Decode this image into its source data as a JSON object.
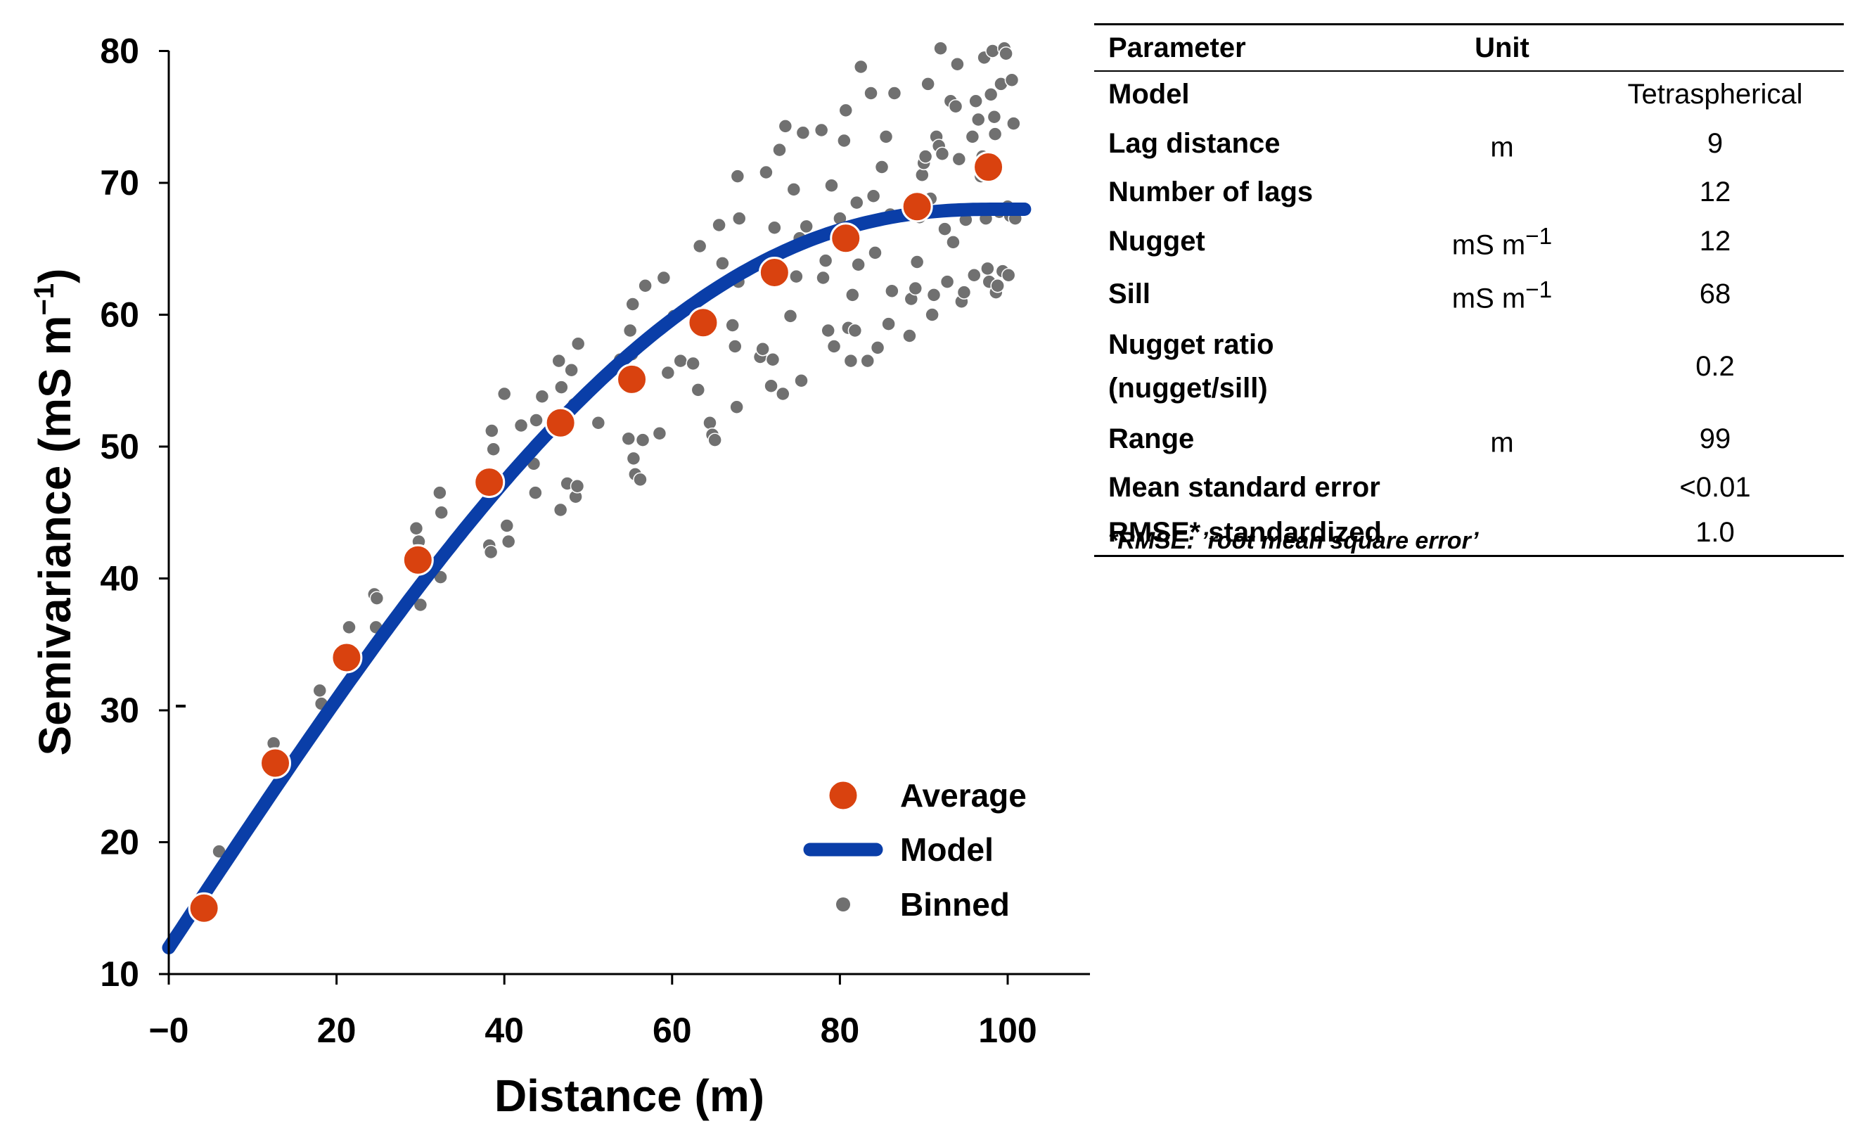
{
  "chart_data": {
    "type": "scatter",
    "xlabel": "Distance (m)",
    "ylabel_main": "Semivariance (mS m",
    "ylabel_sup": "−1",
    "ylabel_close": ")",
    "xlim": [
      0,
      110
    ],
    "ylim": [
      10,
      80
    ],
    "x_ticks": [
      0,
      20,
      40,
      60,
      80,
      100
    ],
    "x_tick_labels": [
      "−0",
      "20",
      "40",
      "60",
      "80",
      "100"
    ],
    "y_ticks": [
      10,
      20,
      30,
      40,
      50,
      60,
      70,
      80
    ],
    "y_tick_labels": [
      "10",
      "20",
      "30",
      "40",
      "50",
      "60",
      "70",
      "80"
    ],
    "colors": {
      "average": "#d9420f",
      "model": "#0a3ea8",
      "binned": "#707070"
    },
    "legend": {
      "position": "bottom-right",
      "entries": [
        {
          "label": "Average",
          "kind": "average"
        },
        {
          "label": "Model",
          "kind": "model"
        },
        {
          "label": "Binned",
          "kind": "binned"
        }
      ]
    },
    "series": [
      {
        "name": "Average",
        "points": [
          [
            4.2,
            15
          ],
          [
            12.7,
            26
          ],
          [
            21.2,
            34
          ],
          [
            29.7,
            41.4
          ],
          [
            38.2,
            47.3
          ],
          [
            46.7,
            51.8
          ],
          [
            55.2,
            55.1
          ],
          [
            63.7,
            59.4
          ],
          [
            72.2,
            63.2
          ],
          [
            80.7,
            65.8
          ],
          [
            89.2,
            68.2
          ],
          [
            97.7,
            71.2
          ]
        ]
      },
      {
        "name": "Model",
        "model": "tetraspherical",
        "nugget": 12,
        "sill": 68,
        "range": 99,
        "x_range": [
          0,
          102
        ]
      },
      {
        "name": "Binned",
        "points": [
          [
            6,
            19.3
          ],
          [
            12.5,
            27.5
          ],
          [
            18,
            31.5
          ],
          [
            18.2,
            30.5
          ],
          [
            20.5,
            34.2
          ],
          [
            21.5,
            36.3
          ],
          [
            24.5,
            38.8
          ],
          [
            24.7,
            36.3
          ],
          [
            24.8,
            38.5
          ],
          [
            29.5,
            43.8
          ],
          [
            29.8,
            42.8
          ],
          [
            30,
            38
          ],
          [
            32.3,
            46.5
          ],
          [
            32.5,
            45
          ],
          [
            32.4,
            40.1
          ],
          [
            36.2,
            44.5
          ],
          [
            38.5,
            51.2
          ],
          [
            38.7,
            49.8
          ],
          [
            38.2,
            42.5
          ],
          [
            38.4,
            42
          ],
          [
            40,
            54
          ],
          [
            40.3,
            44
          ],
          [
            40.5,
            42.8
          ],
          [
            42,
            51.6
          ],
          [
            43.8,
            52
          ],
          [
            43.5,
            48.7
          ],
          [
            43.7,
            46.5
          ],
          [
            44.5,
            53.8
          ],
          [
            46.5,
            56.5
          ],
          [
            46.8,
            54.5
          ],
          [
            46.7,
            45.2
          ],
          [
            47.5,
            47.2
          ],
          [
            48,
            55.8
          ],
          [
            48.3,
            53.2
          ],
          [
            48.5,
            46.2
          ],
          [
            48.7,
            47
          ],
          [
            48.8,
            57.8
          ],
          [
            51.2,
            51.8
          ],
          [
            53.8,
            56.6
          ],
          [
            54.8,
            50.6
          ],
          [
            55,
            58.8
          ],
          [
            55.2,
            57
          ],
          [
            55.3,
            60.8
          ],
          [
            55.4,
            49.1
          ],
          [
            55.6,
            47.9
          ],
          [
            56.2,
            47.5
          ],
          [
            56.5,
            50.5
          ],
          [
            56.8,
            62.2
          ],
          [
            58.5,
            51
          ],
          [
            59,
            62.8
          ],
          [
            59.5,
            55.6
          ],
          [
            60.2,
            59.9
          ],
          [
            61,
            56.5
          ],
          [
            62.5,
            56.3
          ],
          [
            62.8,
            59.8
          ],
          [
            63.1,
            54.3
          ],
          [
            63.3,
            65.2
          ],
          [
            64.5,
            51.8
          ],
          [
            64.8,
            50.9
          ],
          [
            65.1,
            50.5
          ],
          [
            65.6,
            66.8
          ],
          [
            66,
            63.9
          ],
          [
            67.2,
            59.2
          ],
          [
            67.5,
            57.6
          ],
          [
            67.7,
            53
          ],
          [
            67.8,
            70.5
          ],
          [
            67.9,
            62.5
          ],
          [
            68,
            67.3
          ],
          [
            70.5,
            56.8
          ],
          [
            70.8,
            57.4
          ],
          [
            71.2,
            70.8
          ],
          [
            71.8,
            54.6
          ],
          [
            72,
            56.6
          ],
          [
            72.2,
            66.6
          ],
          [
            72.8,
            72.5
          ],
          [
            73.5,
            74.3
          ],
          [
            73.2,
            54
          ],
          [
            74.1,
            59.9
          ],
          [
            74.5,
            69.5
          ],
          [
            74.8,
            62.9
          ],
          [
            75.2,
            65.8
          ],
          [
            75.4,
            55
          ],
          [
            75.6,
            73.8
          ],
          [
            76,
            66.7
          ],
          [
            77.8,
            74
          ],
          [
            78,
            62.8
          ],
          [
            78.3,
            64.1
          ],
          [
            78.6,
            58.8
          ],
          [
            79,
            69.8
          ],
          [
            79.3,
            57.6
          ],
          [
            80,
            67.3
          ],
          [
            80.5,
            73.2
          ],
          [
            80.7,
            75.5
          ],
          [
            81,
            59
          ],
          [
            81.3,
            56.5
          ],
          [
            81.5,
            61.5
          ],
          [
            81.8,
            58.8
          ],
          [
            82,
            68.5
          ],
          [
            82.2,
            63.8
          ],
          [
            82.5,
            78.8
          ],
          [
            83.3,
            56.5
          ],
          [
            83.7,
            76.8
          ],
          [
            84,
            69
          ],
          [
            84.2,
            64.7
          ],
          [
            84.5,
            57.5
          ],
          [
            85,
            71.2
          ],
          [
            85.5,
            73.5
          ],
          [
            85.8,
            59.3
          ],
          [
            86,
            67.6
          ],
          [
            86.2,
            61.8
          ],
          [
            86.5,
            76.8
          ],
          [
            88.3,
            58.4
          ],
          [
            88.5,
            61.2
          ],
          [
            89,
            62
          ],
          [
            89.2,
            64
          ],
          [
            89.5,
            67.4
          ],
          [
            89.8,
            70.6
          ],
          [
            90,
            71.5
          ],
          [
            90.2,
            72
          ],
          [
            90.5,
            77.5
          ],
          [
            90.8,
            68.8
          ],
          [
            91,
            60
          ],
          [
            91.2,
            61.5
          ],
          [
            91.5,
            73.5
          ],
          [
            91.8,
            72.8
          ],
          [
            92,
            80.2
          ],
          [
            92.2,
            72.2
          ],
          [
            92.5,
            66.5
          ],
          [
            92.8,
            62.5
          ],
          [
            93.2,
            76.2
          ],
          [
            93.5,
            65.5
          ],
          [
            93.8,
            75.8
          ],
          [
            94,
            79
          ],
          [
            94.2,
            71.8
          ],
          [
            94.5,
            61
          ],
          [
            94.8,
            61.7
          ],
          [
            95,
            67.2
          ],
          [
            95.8,
            73.5
          ],
          [
            96,
            63
          ],
          [
            96.2,
            76.2
          ],
          [
            96.5,
            74.8
          ],
          [
            96.8,
            70.5
          ],
          [
            97,
            72
          ],
          [
            97.2,
            79.5
          ],
          [
            97.4,
            67.3
          ],
          [
            97.6,
            63.5
          ],
          [
            97.8,
            62.5
          ],
          [
            98,
            76.7
          ],
          [
            98.2,
            80
          ],
          [
            98.4,
            75
          ],
          [
            98.5,
            73.7
          ],
          [
            98.6,
            61.7
          ],
          [
            98.8,
            62.2
          ],
          [
            99,
            67.8
          ],
          [
            99.2,
            77.5
          ],
          [
            99.4,
            63.3
          ],
          [
            99.6,
            80.2
          ],
          [
            99.8,
            79.8
          ],
          [
            100,
            68.2
          ],
          [
            100.1,
            63
          ],
          [
            100.3,
            67.5
          ],
          [
            100.5,
            77.8
          ],
          [
            100.7,
            74.5
          ],
          [
            100.9,
            67.3
          ]
        ]
      }
    ]
  },
  "table": {
    "header": {
      "parameter": "Parameter",
      "unit": "Unit",
      "value": ""
    },
    "rows": [
      {
        "parameter": "Model",
        "unit": "",
        "unit_sup": "",
        "value": "Tetraspherical"
      },
      {
        "parameter": "Lag distance",
        "unit": "m",
        "unit_sup": "",
        "value": "9"
      },
      {
        "parameter": "Number of lags",
        "unit": "",
        "unit_sup": "",
        "value": "12"
      },
      {
        "parameter": "Nugget",
        "unit": "mS m",
        "unit_sup": "−1",
        "value": "12"
      },
      {
        "parameter": "Sill",
        "unit": "mS m",
        "unit_sup": "−1",
        "value": "68"
      },
      {
        "parameter": "Nugget ratio (nugget/sill)",
        "unit": "",
        "unit_sup": "",
        "value": "0.2"
      },
      {
        "parameter": "Range",
        "unit": "m",
        "unit_sup": "",
        "value": "99"
      },
      {
        "parameter": "Mean standard error",
        "unit": "",
        "unit_sup": "",
        "value": "<0.01"
      },
      {
        "parameter": "RMSE* standardized",
        "unit": "",
        "unit_sup": "",
        "value": "1.0"
      }
    ],
    "footnote": "*RMSE: ’root mean square error’"
  }
}
